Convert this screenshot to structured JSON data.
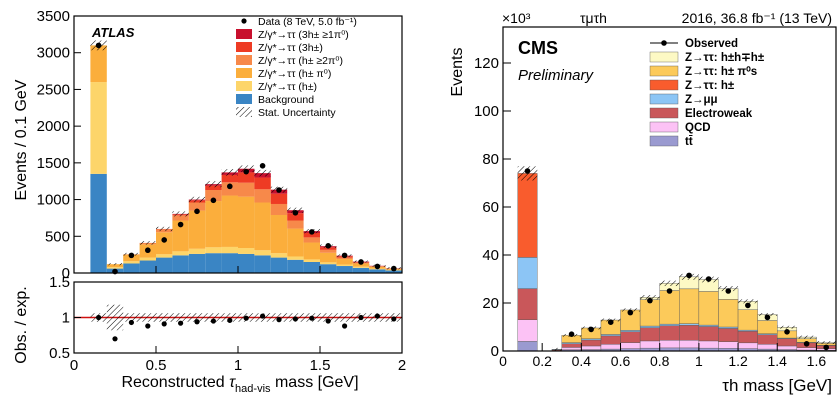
{
  "left_panel": {
    "experiment": "ATLAS",
    "ylabel": "Events / 0.1 GeV",
    "ratio_ylabel": "Obs. / exp.",
    "xlabel": "Reconstructed τhad-vis mass [GeV]",
    "xlabel_main": "Reconstructed ",
    "xlabel_tau": "τ",
    "xlabel_sub": "had-vis",
    "xlabel_tail": " mass [GeV]",
    "x_ticks": [
      "0",
      "0.5",
      "1",
      "1.5",
      "2"
    ],
    "y_ticks": [
      "0",
      "500",
      "1000",
      "1500",
      "2000",
      "2500",
      "3000",
      "3500"
    ],
    "ratio_ticks": [
      "0.5",
      "1",
      "1.5"
    ],
    "legend": [
      {
        "label": "Data (8 TeV, 5.0 fb⁻¹)",
        "kind": "marker"
      },
      {
        "label": "Z/γ*→ττ (3h± ≥1π⁰)",
        "kind": "fill",
        "color": "#c8102e"
      },
      {
        "label": "Z/γ*→ττ (3h±)",
        "kind": "fill",
        "color": "#ee3b24"
      },
      {
        "label": "Z/γ*→ττ (h± ≥2π⁰)",
        "kind": "fill",
        "color": "#f7894a"
      },
      {
        "label": "Z/γ*→ττ (h± π⁰)",
        "kind": "fill",
        "color": "#fbae3c"
      },
      {
        "label": "Z/γ*→ττ (h±)",
        "kind": "fill",
        "color": "#fdd56a"
      },
      {
        "label": "Background",
        "kind": "fill",
        "color": "#3a85c4"
      },
      {
        "label": "Stat. Uncertainty",
        "kind": "hatch"
      }
    ]
  },
  "right_panel": {
    "experiment": "CMS",
    "status": "Preliminary",
    "channel": "τμτh",
    "lumi": "2016, 36.8 fb⁻¹ (13 TeV)",
    "exponent": "×10³",
    "ylabel": "Events",
    "xlabel": "τh mass [GeV]",
    "x_ticks": [
      "0",
      "0.2",
      "0.4",
      "0.6",
      "0.8",
      "1",
      "1.2",
      "1.4",
      "1.6"
    ],
    "y_ticks": [
      "0",
      "20",
      "40",
      "60",
      "80",
      "100",
      "120"
    ],
    "legend": [
      {
        "label": "Observed",
        "kind": "marker"
      },
      {
        "label": "Z→ττ: h±h∓h±",
        "kind": "fill",
        "color": "#fdf9c4"
      },
      {
        "label": "Z→ττ: h± π⁰s",
        "kind": "fill",
        "color": "#fcca5a"
      },
      {
        "label": "Z→ττ: h±",
        "kind": "fill",
        "color": "#f95c2d"
      },
      {
        "label": "Z→μμ",
        "kind": "fill",
        "color": "#8cc5f5"
      },
      {
        "label": "Electroweak",
        "kind": "fill",
        "color": "#c9575a"
      },
      {
        "label": "QCD",
        "kind": "fill",
        "color": "#fcc2f5"
      },
      {
        "label": "tt̄",
        "kind": "fill",
        "color": "#9a9ad0"
      }
    ]
  },
  "chart_data": [
    {
      "type": "bar",
      "stacked": true,
      "title": "",
      "xlabel": "Reconstructed τhad-vis mass [GeV]",
      "ylabel": "Events / 0.1 GeV",
      "xlim": [
        0,
        2
      ],
      "ylim": [
        0,
        3500
      ],
      "bin_width": 0.1,
      "x": [
        0.15,
        0.25,
        0.35,
        0.45,
        0.55,
        0.65,
        0.75,
        0.85,
        0.95,
        1.05,
        1.15,
        1.25,
        1.35,
        1.45,
        1.55,
        1.65,
        1.75,
        1.85,
        1.95
      ],
      "series": [
        {
          "name": "Background",
          "values": [
            1350,
            60,
            130,
            170,
            210,
            240,
            260,
            270,
            270,
            260,
            240,
            210,
            180,
            150,
            120,
            95,
            70,
            50,
            35
          ]
        },
        {
          "name": "Z/γ*→ττ (h±)",
          "values": [
            1250,
            20,
            30,
            40,
            45,
            55,
            70,
            80,
            85,
            80,
            70,
            60,
            45,
            35,
            25,
            20,
            15,
            10,
            8
          ]
        },
        {
          "name": "Z/γ*→ττ (h± π⁰)",
          "values": [
            500,
            40,
            90,
            180,
            300,
            420,
            520,
            630,
            700,
            700,
            650,
            520,
            380,
            230,
            130,
            75,
            45,
            25,
            15
          ]
        },
        {
          "name": "Z/γ*→ττ (h± ≥2π⁰)",
          "values": [
            0,
            0,
            5,
            20,
            40,
            70,
            110,
            150,
            180,
            190,
            180,
            150,
            110,
            70,
            40,
            20,
            10,
            5,
            2
          ]
        },
        {
          "name": "Z/γ*→ττ (3h±)",
          "values": [
            0,
            0,
            0,
            0,
            5,
            15,
            30,
            60,
            100,
            140,
            160,
            140,
            100,
            60,
            35,
            18,
            10,
            5,
            3
          ]
        },
        {
          "name": "Z/γ*→ττ (3h± ≥1π⁰)",
          "values": [
            0,
            0,
            0,
            0,
            0,
            5,
            10,
            20,
            35,
            50,
            60,
            55,
            40,
            25,
            15,
            8,
            5,
            3,
            2
          ]
        }
      ],
      "data": [
        3100,
        20,
        240,
        310,
        450,
        660,
        840,
        990,
        1180,
        1380,
        1460,
        1130,
        820,
        560,
        370,
        240,
        150,
        90,
        60
      ]
    },
    {
      "type": "line",
      "xlabel": "Reconstructed τhad-vis mass [GeV]",
      "ylabel": "Obs. / exp.",
      "xlim": [
        0,
        2
      ],
      "ylim": [
        0.5,
        1.5
      ],
      "x": [
        0.15,
        0.25,
        0.35,
        0.45,
        0.55,
        0.65,
        0.75,
        0.85,
        0.95,
        1.05,
        1.15,
        1.25,
        1.35,
        1.45,
        1.55,
        1.65,
        1.75,
        1.85,
        1.95
      ],
      "values": [
        1.0,
        0.7,
        0.93,
        0.88,
        0.91,
        0.92,
        0.94,
        0.95,
        0.96,
        0.99,
        1.02,
        0.97,
        0.98,
        0.99,
        0.95,
        0.88,
        1.0,
        1.02,
        0.98
      ]
    },
    {
      "type": "bar",
      "stacked": true,
      "title": "",
      "xlabel": "τh mass [GeV]",
      "ylabel": "Events",
      "y_exponent": "×10³",
      "xlim": [
        0,
        1.7
      ],
      "ylim": [
        0,
        135
      ],
      "x": [
        0.125,
        0.275,
        0.35,
        0.45,
        0.55,
        0.65,
        0.75,
        0.85,
        0.95,
        1.05,
        1.15,
        1.25,
        1.35,
        1.45,
        1.55,
        1.65
      ],
      "widths": [
        0.1,
        0.05,
        0.1,
        0.1,
        0.1,
        0.1,
        0.1,
        0.1,
        0.1,
        0.1,
        0.1,
        0.1,
        0.1,
        0.1,
        0.1,
        0.1
      ],
      "series": [
        {
          "name": "tt̄",
          "values": [
            4,
            0,
            0.5,
            0.6,
            0.8,
            1,
            1.2,
            1.3,
            1.3,
            1.2,
            1.1,
            1,
            0.8,
            0.6,
            0.4,
            0.3
          ]
        },
        {
          "name": "QCD",
          "values": [
            9,
            0.2,
            1,
            1.5,
            2,
            2.5,
            3,
            3.2,
            3.2,
            3,
            2.8,
            2.4,
            2,
            1.5,
            1,
            0.7
          ]
        },
        {
          "name": "Electroweak",
          "values": [
            13,
            0.3,
            1.5,
            2.5,
            3.5,
            4.5,
            5.5,
            6,
            6.2,
            6,
            5.5,
            4.8,
            4,
            3,
            2,
            1.3
          ]
        },
        {
          "name": "Z→μμ",
          "values": [
            13,
            0.2,
            0.5,
            0.5,
            0.6,
            0.6,
            0.7,
            0.7,
            0.7,
            0.6,
            0.6,
            0.5,
            0.4,
            0.3,
            0.2,
            0.1
          ]
        },
        {
          "name": "Z→ττ: h±",
          "values": [
            35,
            0,
            0,
            0,
            0,
            0,
            0,
            0,
            0,
            0,
            0,
            0,
            0,
            0,
            0,
            0
          ]
        },
        {
          "name": "Z→ττ: h± π⁰s",
          "values": [
            0,
            0,
            3,
            4.5,
            6,
            8.5,
            11,
            14,
            14.5,
            14,
            11.5,
            8.5,
            5.5,
            3,
            1.5,
            0.8
          ]
        },
        {
          "name": "Z→ττ: h±h∓h±",
          "values": [
            0,
            0,
            0,
            0,
            0,
            0,
            1,
            3,
            5,
            5,
            4.5,
            3.5,
            2.5,
            1.5,
            0.7,
            0.3
          ]
        }
      ],
      "data": [
        75,
        0,
        7,
        9,
        12,
        16,
        21,
        25,
        31.5,
        30,
        25,
        19,
        14,
        8,
        3,
        1.5
      ]
    }
  ]
}
